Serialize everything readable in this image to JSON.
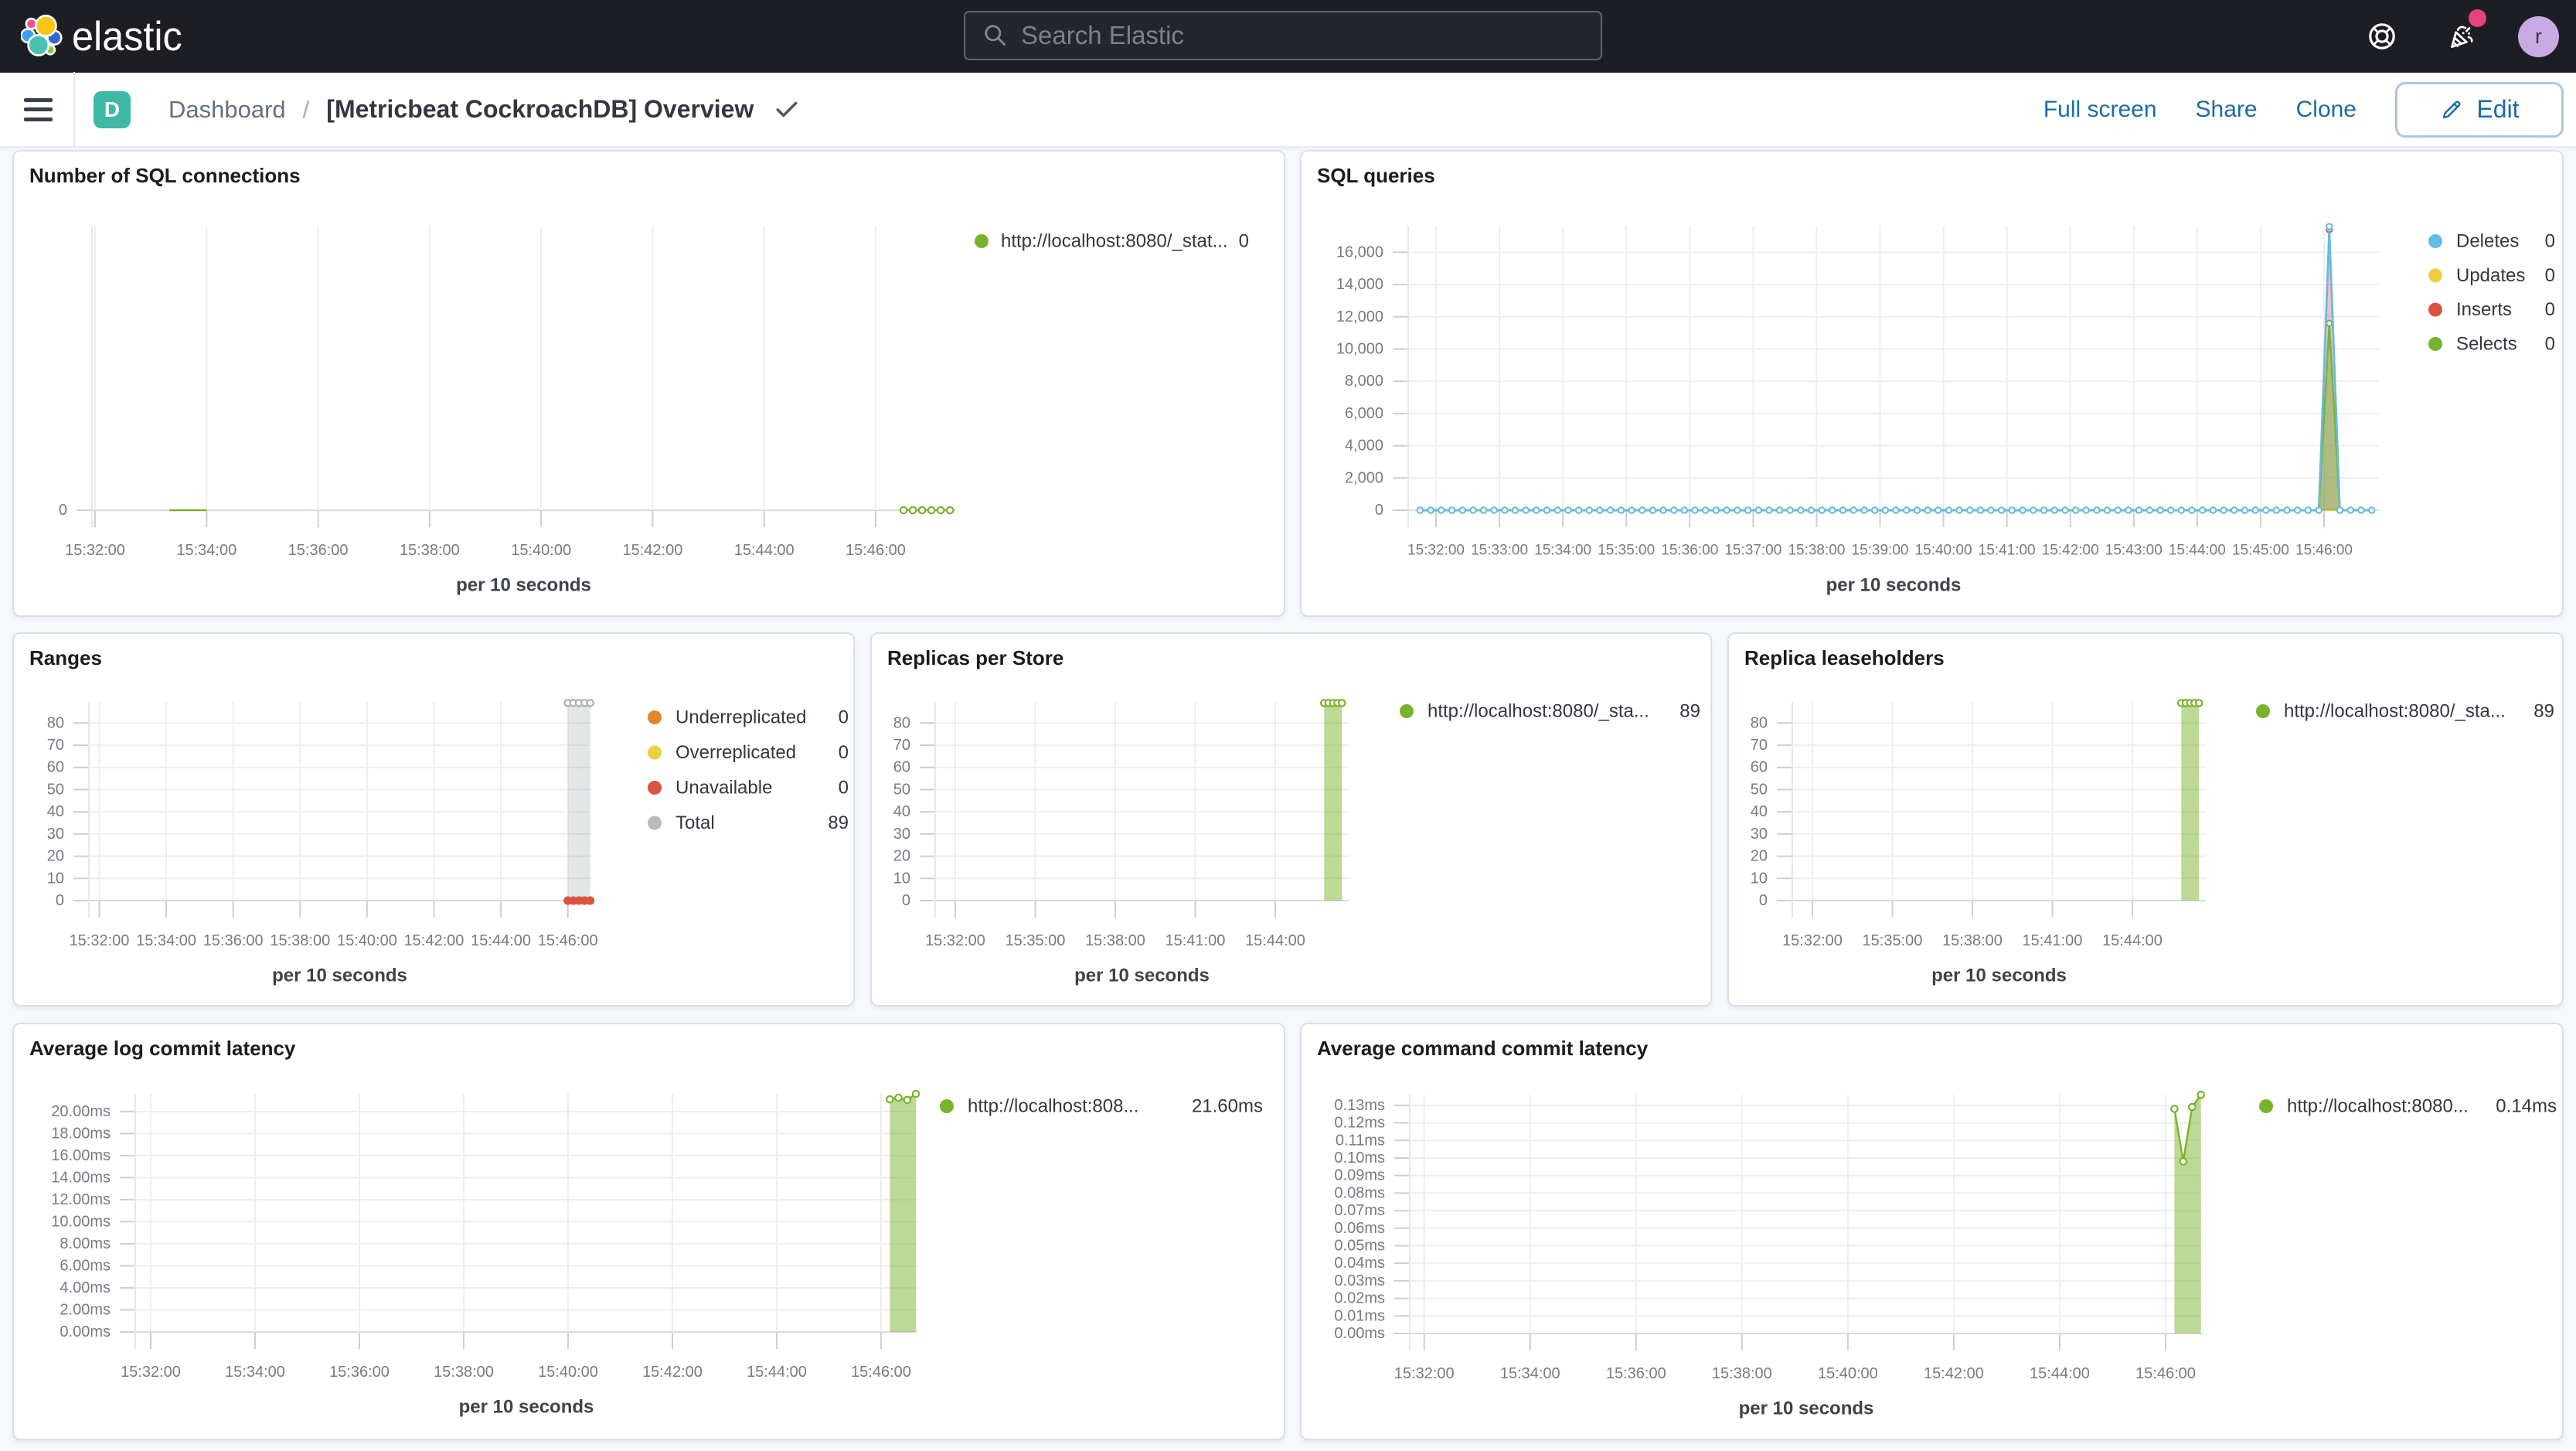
{
  "header": {
    "brand": "elastic",
    "search_placeholder": "Search Elastic",
    "avatar_initial": "r"
  },
  "nav": {
    "badge_initial": "D",
    "breadcrumb_root": "Dashboard",
    "breadcrumb_separator": "/",
    "breadcrumb_current": "[Metricbeat CockroachDB] Overview",
    "action_fullscreen": "Full screen",
    "action_share": "Share",
    "action_clone": "Clone",
    "action_edit": "Edit"
  },
  "colors": {
    "header_bg": "#1D1E24",
    "page_bg": "#F7F8FC",
    "link_blue": "#1C6CA9",
    "badge_teal": "#3FB8A6",
    "avatar_purple": "#C9A9E4",
    "notification_pink": "#E6437D",
    "series_green": "#79B32C",
    "series_blue": "#61BDE8",
    "series_yellow": "#EECF41",
    "series_red": "#DC5242",
    "series_orange": "#E2862B",
    "series_gray": "#AEB0B5"
  },
  "chart_data": [
    {
      "id": "sql-connections",
      "type": "line",
      "title": "Number of SQL connections",
      "xlabel": "per 10 seconds",
      "x_tick_labels": [
        "15:32:00",
        "15:34:00",
        "15:36:00",
        "15:38:00",
        "15:40:00",
        "15:42:00",
        "15:44:00",
        "15:46:00"
      ],
      "y_ticks": [
        {
          "label": "0",
          "value": 0
        }
      ],
      "ylim": [
        0,
        1
      ],
      "series": [
        {
          "name": "http://localhost:8080/_stat...",
          "color": "#79B32C",
          "fill_opacity": 0,
          "marker": "hollow",
          "segments": [
            {
              "from": "15:33:20",
              "to": "15:34:00",
              "step_s": 10,
              "value": 0,
              "marker": "none"
            },
            {
              "from": "15:46:30",
              "to": "15:47:20",
              "step_s": 10,
              "value": 0
            }
          ]
        }
      ],
      "legend": [
        {
          "label": "http://localhost:8080/_stat...",
          "value": "0",
          "color": "#79B32C"
        }
      ]
    },
    {
      "id": "sql-queries",
      "type": "line",
      "title": "SQL queries",
      "xlabel": "per 10 seconds",
      "x_tick_labels": [
        "15:32:00",
        "15:33:00",
        "15:34:00",
        "15:35:00",
        "15:36:00",
        "15:37:00",
        "15:38:00",
        "15:39:00",
        "15:40:00",
        "15:41:00",
        "15:42:00",
        "15:43:00",
        "15:44:00",
        "15:45:00",
        "15:46:00"
      ],
      "y_ticks": [
        {
          "label": "0",
          "value": 0
        },
        {
          "label": "2,000",
          "value": 2000
        },
        {
          "label": "4,000",
          "value": 4000
        },
        {
          "label": "6,000",
          "value": 6000
        },
        {
          "label": "8,000",
          "value": 8000
        },
        {
          "label": "10,000",
          "value": 10000
        },
        {
          "label": "12,000",
          "value": 12000
        },
        {
          "label": "14,000",
          "value": 14000
        },
        {
          "label": "16,000",
          "value": 16000
        }
      ],
      "ylim": [
        0,
        17650
      ],
      "series": [
        {
          "name": "Updates",
          "color": "#EECF41",
          "fill_opacity": 0,
          "marker": "none",
          "segments": [
            {
              "from": "15:31:45",
              "to": "15:46:45",
              "step_s": 10,
              "value": 0
            }
          ]
        },
        {
          "name": "Inserts",
          "color": "#DC5242",
          "fill_opacity": 0.32,
          "marker": "hollow",
          "segments": [
            {
              "from": "15:31:45",
              "to": "15:46:45",
              "step_s": 10,
              "value": 0,
              "overrides": {
                "15:46:05": 17400
              }
            }
          ]
        },
        {
          "name": "Selects",
          "color": "#79B32C",
          "fill_opacity": 0.5,
          "marker": "hollow",
          "segments": [
            {
              "from": "15:31:45",
              "to": "15:46:45",
              "step_s": 10,
              "value": 0,
              "overrides": {
                "15:46:05": 11600
              }
            }
          ]
        },
        {
          "name": "Deletes",
          "color": "#61BDE8",
          "fill_opacity": 0.1,
          "marker": "hollow",
          "segments": [
            {
              "from": "15:31:45",
              "to": "15:46:45",
              "step_s": 10,
              "value": 0,
              "overrides": {
                "15:46:05": 17600
              }
            }
          ]
        }
      ],
      "legend": [
        {
          "label": "Deletes",
          "value": "0",
          "color": "#61BDE8"
        },
        {
          "label": "Updates",
          "value": "0",
          "color": "#EECF41"
        },
        {
          "label": "Inserts",
          "value": "0",
          "color": "#DC5242"
        },
        {
          "label": "Selects",
          "value": "0",
          "color": "#79B32C"
        }
      ]
    },
    {
      "id": "ranges",
      "type": "line",
      "title": "Ranges",
      "xlabel": "per 10 seconds",
      "x_tick_labels": [
        "15:32:00",
        "15:34:00",
        "15:36:00",
        "15:38:00",
        "15:40:00",
        "15:42:00",
        "15:44:00",
        "15:46:00"
      ],
      "y_ticks": [
        {
          "label": "0",
          "value": 0
        },
        {
          "label": "10",
          "value": 10
        },
        {
          "label": "20",
          "value": 20
        },
        {
          "label": "30",
          "value": 30
        },
        {
          "label": "40",
          "value": 40
        },
        {
          "label": "50",
          "value": 50
        },
        {
          "label": "60",
          "value": 60
        },
        {
          "label": "70",
          "value": 70
        },
        {
          "label": "80",
          "value": 80
        }
      ],
      "ylim": [
        0,
        89.5
      ],
      "series": [
        {
          "name": "Total",
          "color": "#C6C8CC",
          "fill_color": "#85888F",
          "fill_opacity": 0.22,
          "marker": "hollow",
          "marker_color": "#ABAEB4",
          "segments": [
            {
              "from": "15:46:00",
              "to": "15:46:40",
              "step_s": 10,
              "value": 89
            }
          ]
        },
        {
          "name": "Underreplicated",
          "color": "#E2862B",
          "fill_opacity": 0,
          "marker": "solid",
          "segments": [
            {
              "from": "15:46:00",
              "to": "15:46:40",
              "step_s": 10,
              "value": 0
            }
          ]
        },
        {
          "name": "Overreplicated",
          "color": "#EECF41",
          "fill_opacity": 0,
          "marker": "solid",
          "segments": [
            {
              "from": "15:46:00",
              "to": "15:46:40",
              "step_s": 10,
              "value": 0
            }
          ]
        },
        {
          "name": "Unavailable",
          "color": "#DC5242",
          "fill_opacity": 0,
          "marker": "solid",
          "segments": [
            {
              "from": "15:46:00",
              "to": "15:46:40",
              "step_s": 10,
              "value": 0
            }
          ]
        }
      ],
      "legend": [
        {
          "label": "Underreplicated",
          "value": "0",
          "color": "#E2862B"
        },
        {
          "label": "Overreplicated",
          "value": "0",
          "color": "#EECF41"
        },
        {
          "label": "Unavailable",
          "value": "0",
          "color": "#DC5242"
        },
        {
          "label": "Total",
          "value": "89",
          "color": "#B9BBC0"
        }
      ]
    },
    {
      "id": "replicas-per-store",
      "type": "line",
      "title": "Replicas per Store",
      "xlabel": "per 10 seconds",
      "x_tick_labels": [
        "15:32:00",
        "15:35:00",
        "15:38:00",
        "15:41:00",
        "15:44:00"
      ],
      "y_ticks": [
        {
          "label": "0",
          "value": 0
        },
        {
          "label": "10",
          "value": 10
        },
        {
          "label": "20",
          "value": 20
        },
        {
          "label": "30",
          "value": 30
        },
        {
          "label": "40",
          "value": 40
        },
        {
          "label": "50",
          "value": 50
        },
        {
          "label": "60",
          "value": 60
        },
        {
          "label": "70",
          "value": 70
        },
        {
          "label": "80",
          "value": 80
        }
      ],
      "ylim": [
        0,
        89.5
      ],
      "series": [
        {
          "name": "http://localhost:8080/_sta...",
          "color": "#79B32C",
          "fill_opacity": 0.5,
          "marker": "hollow",
          "segments": [
            {
              "from": "15:45:50",
              "to": "15:46:30",
              "step_s": 10,
              "value": 89
            }
          ]
        }
      ],
      "legend": [
        {
          "label": "http://localhost:8080/_sta...",
          "value": "89",
          "color": "#79B32C"
        }
      ]
    },
    {
      "id": "replica-leaseholders",
      "type": "line",
      "title": "Replica leaseholders",
      "xlabel": "per 10 seconds",
      "x_tick_labels": [
        "15:32:00",
        "15:35:00",
        "15:38:00",
        "15:41:00",
        "15:44:00"
      ],
      "y_ticks": [
        {
          "label": "0",
          "value": 0
        },
        {
          "label": "10",
          "value": 10
        },
        {
          "label": "20",
          "value": 20
        },
        {
          "label": "30",
          "value": 30
        },
        {
          "label": "40",
          "value": 40
        },
        {
          "label": "50",
          "value": 50
        },
        {
          "label": "60",
          "value": 60
        },
        {
          "label": "70",
          "value": 70
        },
        {
          "label": "80",
          "value": 80
        }
      ],
      "ylim": [
        0,
        89.5
      ],
      "series": [
        {
          "name": "http://localhost:8080/_sta...",
          "color": "#79B32C",
          "fill_opacity": 0.5,
          "marker": "hollow",
          "segments": [
            {
              "from": "15:45:50",
              "to": "15:46:30",
              "step_s": 10,
              "value": 89
            }
          ]
        }
      ],
      "legend": [
        {
          "label": "http://localhost:8080/_sta...",
          "value": "89",
          "color": "#79B32C"
        }
      ]
    },
    {
      "id": "avg-log-commit-latency",
      "type": "line",
      "title": "Average log commit latency",
      "xlabel": "per 10 seconds",
      "x_tick_labels": [
        "15:32:00",
        "15:34:00",
        "15:36:00",
        "15:38:00",
        "15:40:00",
        "15:42:00",
        "15:44:00",
        "15:46:00"
      ],
      "y_ticks": [
        {
          "label": "0.00ms",
          "value": 0
        },
        {
          "label": "2.00ms",
          "value": 2
        },
        {
          "label": "4.00ms",
          "value": 4
        },
        {
          "label": "6.00ms",
          "value": 6
        },
        {
          "label": "8.00ms",
          "value": 8
        },
        {
          "label": "10.00ms",
          "value": 10
        },
        {
          "label": "12.00ms",
          "value": 12
        },
        {
          "label": "14.00ms",
          "value": 14
        },
        {
          "label": "16.00ms",
          "value": 16
        },
        {
          "label": "18.00ms",
          "value": 18
        },
        {
          "label": "20.00ms",
          "value": 20
        }
      ],
      "ylim": [
        0,
        21.6
      ],
      "series": [
        {
          "name": "http://localhost:808...",
          "color": "#79B32C",
          "fill_opacity": 0.5,
          "marker": "hollow",
          "segments": [
            {
              "points": [
                [
                  "15:46:10",
                  21.1
                ],
                [
                  "15:46:20",
                  21.25
                ],
                [
                  "15:46:30",
                  21.05
                ],
                [
                  "15:46:40",
                  21.6
                ]
              ]
            }
          ]
        }
      ],
      "legend": [
        {
          "label": "http://localhost:808...",
          "value": "21.60ms",
          "color": "#79B32C"
        }
      ]
    },
    {
      "id": "avg-command-commit-latency",
      "type": "line",
      "title": "Average command commit latency",
      "xlabel": "per 10 seconds",
      "x_tick_labels": [
        "15:32:00",
        "15:34:00",
        "15:36:00",
        "15:38:00",
        "15:40:00",
        "15:42:00",
        "15:44:00",
        "15:46:00"
      ],
      "y_ticks": [
        {
          "label": "0.00ms",
          "value": 0
        },
        {
          "label": "0.01ms",
          "value": 0.01
        },
        {
          "label": "0.02ms",
          "value": 0.02
        },
        {
          "label": "0.03ms",
          "value": 0.03
        },
        {
          "label": "0.04ms",
          "value": 0.04
        },
        {
          "label": "0.05ms",
          "value": 0.05
        },
        {
          "label": "0.06ms",
          "value": 0.06
        },
        {
          "label": "0.07ms",
          "value": 0.07
        },
        {
          "label": "0.08ms",
          "value": 0.08
        },
        {
          "label": "0.09ms",
          "value": 0.09
        },
        {
          "label": "0.10ms",
          "value": 0.1
        },
        {
          "label": "0.11ms",
          "value": 0.11
        },
        {
          "label": "0.12ms",
          "value": 0.12
        },
        {
          "label": "0.13ms",
          "value": 0.13
        }
      ],
      "ylim": [
        0,
        0.1361
      ],
      "series": [
        {
          "name": "http://localhost:8080...",
          "color": "#79B32C",
          "fill_opacity": 0.5,
          "marker": "hollow",
          "segments": [
            {
              "points": [
                [
                  "15:46:10",
                  0.128
                ],
                [
                  "15:46:20",
                  0.098
                ],
                [
                  "15:46:30",
                  0.129
                ],
                [
                  "15:46:40",
                  0.136
                ]
              ]
            }
          ]
        }
      ],
      "legend": [
        {
          "label": "http://localhost:8080...",
          "value": "0.14ms",
          "color": "#79B32C"
        }
      ]
    }
  ]
}
